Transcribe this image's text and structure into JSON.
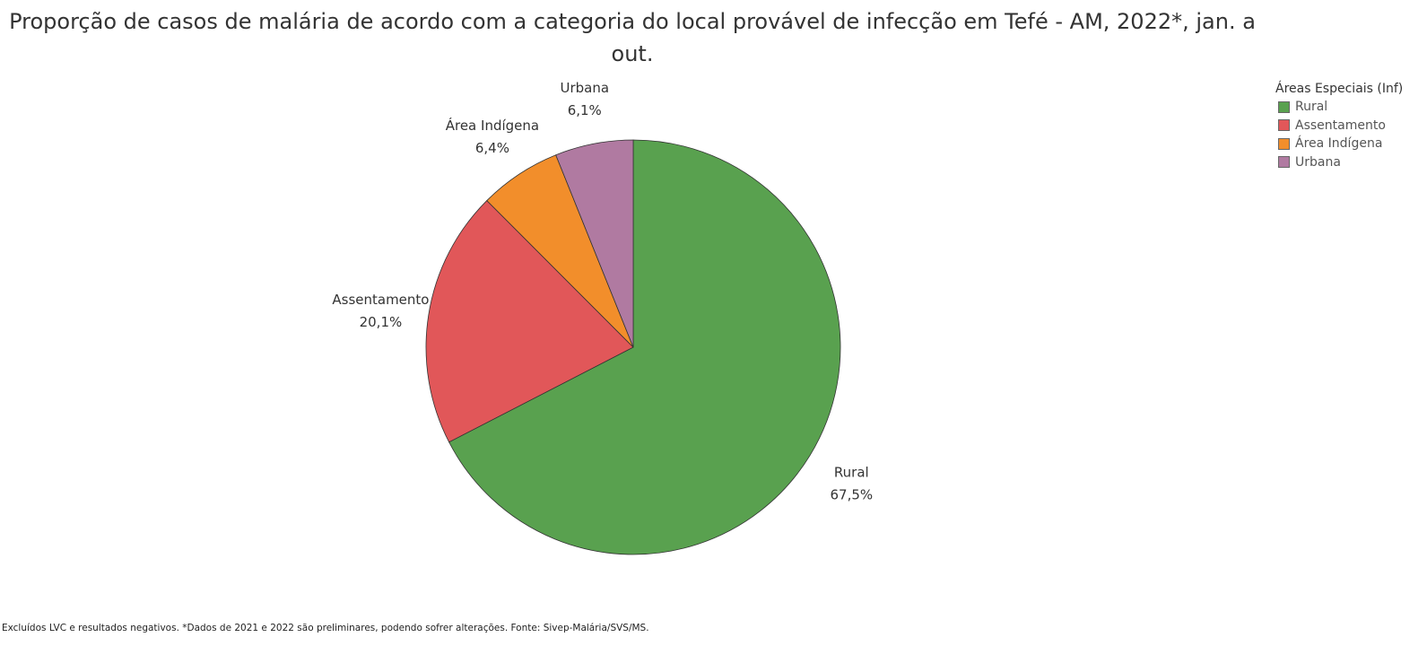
{
  "chart_data": {
    "type": "pie",
    "title": "Proporção de casos de malária de acordo com a categoria do local provável de infecção em Tefé - AM, 2022*, jan. a out.",
    "legend_title": "Áreas Especiais (Inf)",
    "legend_position": "top-right",
    "slices": [
      {
        "name": "Rural",
        "value": 67.5,
        "label": "67,5%",
        "color": "#59a14f"
      },
      {
        "name": "Assentamento",
        "value": 20.1,
        "label": "20,1%",
        "color": "#e15759"
      },
      {
        "name": "Área Indígena",
        "value": 6.4,
        "label": "6,4%",
        "color": "#f28e2b"
      },
      {
        "name": "Urbana",
        "value": 6.1,
        "label": "6,1%",
        "color": "#b07aa1"
      }
    ]
  },
  "footnote": "Excluídos LVC e resultados negativos. *Dados de 2021 e 2022 são preliminares, podendo sofrer alterações. Fonte: Sivep-Malária/SVS/MS."
}
